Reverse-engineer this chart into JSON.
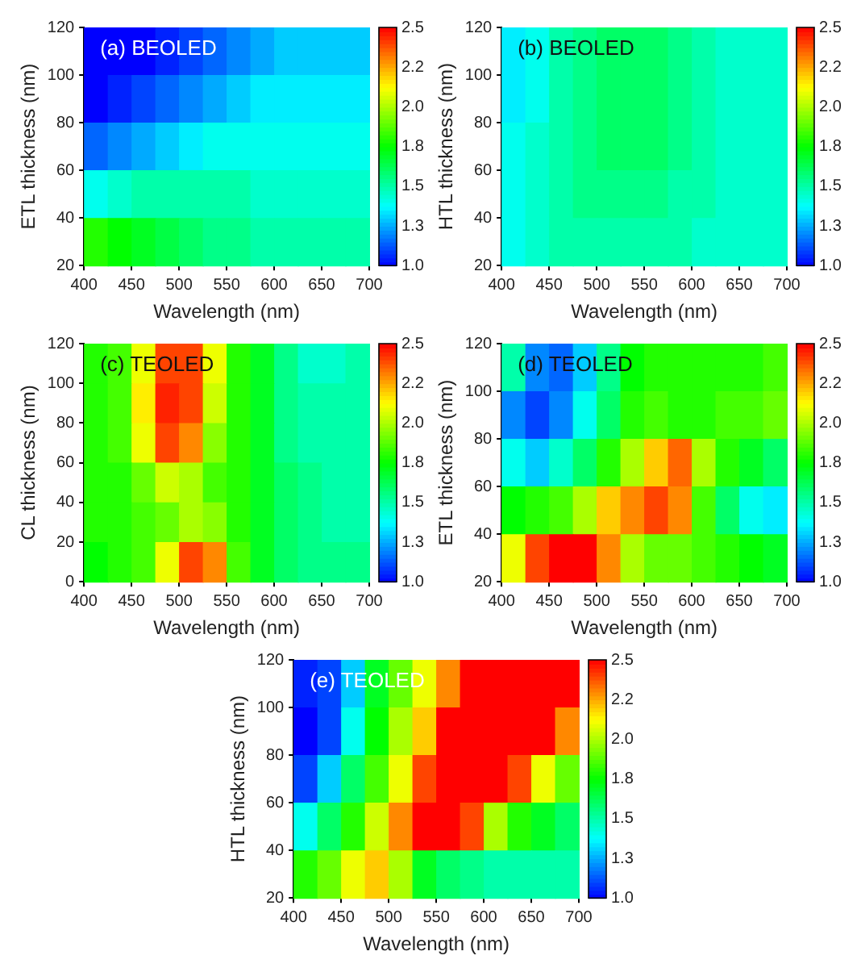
{
  "chart_data": [
    {
      "type": "heatmap",
      "title": "(a) BEOLED",
      "xlabel": "Wavelength (nm)",
      "ylabel": "ETL thickness (nm)",
      "xlim": [
        400,
        700
      ],
      "xticks": [
        400,
        450,
        500,
        550,
        600,
        650,
        700
      ],
      "ylim": [
        20,
        120
      ],
      "yticks": [
        20,
        40,
        60,
        80,
        100,
        120
      ],
      "clim": [
        1.0,
        2.5
      ],
      "cticks": [
        {
          "value": 1.0,
          "label": "1.0"
        },
        {
          "value": 1.25,
          "label": "1.3"
        },
        {
          "value": 1.5,
          "label": "1.5"
        },
        {
          "value": 1.75,
          "label": "1.8"
        },
        {
          "value": 2.0,
          "label": "2.0"
        },
        {
          "value": 2.25,
          "label": "2.2"
        },
        {
          "value": 2.5,
          "label": "2.5"
        }
      ],
      "cells": [
        [
          1.0,
          1.0,
          1.0,
          1.05,
          1.1,
          1.15,
          1.2,
          1.25,
          1.3,
          1.3,
          1.3,
          1.3
        ],
        [
          1.0,
          1.05,
          1.1,
          1.15,
          1.2,
          1.25,
          1.3,
          1.35,
          1.35,
          1.35,
          1.35,
          1.35
        ],
        [
          1.15,
          1.2,
          1.25,
          1.3,
          1.35,
          1.4,
          1.4,
          1.4,
          1.4,
          1.4,
          1.4,
          1.4
        ],
        [
          1.4,
          1.45,
          1.5,
          1.5,
          1.5,
          1.5,
          1.5,
          1.45,
          1.45,
          1.45,
          1.45,
          1.45
        ],
        [
          1.8,
          1.75,
          1.7,
          1.65,
          1.6,
          1.55,
          1.55,
          1.5,
          1.5,
          1.5,
          1.5,
          1.5
        ]
      ]
    },
    {
      "type": "heatmap",
      "title": "(b) BEOLED",
      "xlabel": "Wavelength (nm)",
      "ylabel": "HTL thickness (nm)",
      "xlim": [
        400,
        700
      ],
      "xticks": [
        400,
        450,
        500,
        550,
        600,
        650,
        700
      ],
      "ylim": [
        20,
        120
      ],
      "yticks": [
        20,
        40,
        60,
        80,
        100,
        120
      ],
      "clim": [
        1.0,
        2.5
      ],
      "cticks": [
        {
          "value": 1.0,
          "label": "1.0"
        },
        {
          "value": 1.25,
          "label": "1.3"
        },
        {
          "value": 1.5,
          "label": "1.5"
        },
        {
          "value": 1.75,
          "label": "1.8"
        },
        {
          "value": 2.0,
          "label": "2.0"
        },
        {
          "value": 2.25,
          "label": "2.2"
        },
        {
          "value": 2.5,
          "label": "2.5"
        }
      ],
      "cells": [
        [
          1.35,
          1.4,
          1.5,
          1.55,
          1.6,
          1.6,
          1.6,
          1.55,
          1.5,
          1.45,
          1.45,
          1.45
        ],
        [
          1.35,
          1.4,
          1.5,
          1.55,
          1.6,
          1.6,
          1.6,
          1.55,
          1.5,
          1.45,
          1.45,
          1.45
        ],
        [
          1.4,
          1.45,
          1.5,
          1.55,
          1.6,
          1.6,
          1.6,
          1.55,
          1.5,
          1.45,
          1.45,
          1.45
        ],
        [
          1.4,
          1.45,
          1.5,
          1.55,
          1.55,
          1.55,
          1.55,
          1.5,
          1.5,
          1.45,
          1.45,
          1.45
        ],
        [
          1.4,
          1.45,
          1.5,
          1.5,
          1.5,
          1.5,
          1.5,
          1.5,
          1.45,
          1.45,
          1.45,
          1.45
        ]
      ]
    },
    {
      "type": "heatmap",
      "title": "(c) TEOLED",
      "xlabel": "Wavelength (nm)",
      "ylabel": "CL thickness (nm)",
      "xlim": [
        400,
        700
      ],
      "xticks": [
        400,
        450,
        500,
        550,
        600,
        650,
        700
      ],
      "ylim": [
        0,
        120
      ],
      "yticks": [
        0,
        20,
        40,
        60,
        80,
        100,
        120
      ],
      "clim": [
        1.0,
        2.5
      ],
      "cticks": [
        {
          "value": 1.0,
          "label": "1.0"
        },
        {
          "value": 1.25,
          "label": "1.3"
        },
        {
          "value": 1.5,
          "label": "1.5"
        },
        {
          "value": 1.75,
          "label": "1.8"
        },
        {
          "value": 2.0,
          "label": "2.0"
        },
        {
          "value": 2.25,
          "label": "2.2"
        },
        {
          "value": 2.5,
          "label": "2.5"
        }
      ],
      "cells": [
        [
          1.8,
          1.85,
          2.1,
          2.4,
          2.4,
          2.1,
          1.8,
          1.7,
          1.55,
          1.45,
          1.45,
          1.5
        ],
        [
          1.8,
          1.85,
          2.15,
          2.45,
          2.4,
          2.05,
          1.8,
          1.7,
          1.55,
          1.5,
          1.5,
          1.5
        ],
        [
          1.8,
          1.85,
          2.1,
          2.4,
          2.3,
          1.95,
          1.8,
          1.7,
          1.55,
          1.5,
          1.5,
          1.5
        ],
        [
          1.8,
          1.8,
          1.9,
          2.05,
          2.0,
          1.85,
          1.8,
          1.7,
          1.6,
          1.55,
          1.5,
          1.5
        ],
        [
          1.8,
          1.8,
          1.85,
          1.9,
          2.0,
          1.95,
          1.8,
          1.7,
          1.6,
          1.55,
          1.5,
          1.5
        ],
        [
          1.75,
          1.8,
          1.85,
          2.1,
          2.4,
          2.3,
          1.85,
          1.7,
          1.6,
          1.55,
          1.55,
          1.55
        ]
      ]
    },
    {
      "type": "heatmap",
      "title": "(d) TEOLED",
      "xlabel": "Wavelength (nm)",
      "ylabel": "ETL thickness (nm)",
      "xlim": [
        400,
        700
      ],
      "xticks": [
        400,
        450,
        500,
        550,
        600,
        650,
        700
      ],
      "ylim": [
        20,
        120
      ],
      "yticks": [
        20,
        40,
        60,
        80,
        100,
        120
      ],
      "clim": [
        1.0,
        2.5
      ],
      "cticks": [
        {
          "value": 1.0,
          "label": "1.0"
        },
        {
          "value": 1.25,
          "label": "1.3"
        },
        {
          "value": 1.5,
          "label": "1.5"
        },
        {
          "value": 1.75,
          "label": "1.8"
        },
        {
          "value": 2.0,
          "label": "2.0"
        },
        {
          "value": 2.25,
          "label": "2.2"
        },
        {
          "value": 2.5,
          "label": "2.5"
        }
      ],
      "cells": [
        [
          1.5,
          1.2,
          1.15,
          1.3,
          1.55,
          1.75,
          1.8,
          1.8,
          1.8,
          1.8,
          1.8,
          1.85
        ],
        [
          1.2,
          1.1,
          1.2,
          1.4,
          1.6,
          1.8,
          1.85,
          1.8,
          1.8,
          1.85,
          1.85,
          1.9
        ],
        [
          1.4,
          1.3,
          1.45,
          1.6,
          1.8,
          2.0,
          2.2,
          2.35,
          2.0,
          1.8,
          1.7,
          1.6
        ],
        [
          1.75,
          1.8,
          1.85,
          2.0,
          2.2,
          2.3,
          2.4,
          2.3,
          1.85,
          1.6,
          1.4,
          1.35
        ],
        [
          2.1,
          2.4,
          2.5,
          2.5,
          2.3,
          2.0,
          1.9,
          1.9,
          1.85,
          1.8,
          1.75,
          1.7
        ]
      ]
    },
    {
      "type": "heatmap",
      "title": "(e) TEOLED",
      "xlabel": "Wavelength (nm)",
      "ylabel": "HTL thickness (nm)",
      "xlim": [
        400,
        700
      ],
      "xticks": [
        400,
        450,
        500,
        550,
        600,
        650,
        700
      ],
      "ylim": [
        20,
        120
      ],
      "yticks": [
        20,
        40,
        60,
        80,
        100,
        120
      ],
      "clim": [
        1.0,
        2.5
      ],
      "cticks": [
        {
          "value": 1.0,
          "label": "1.0"
        },
        {
          "value": 1.25,
          "label": "1.3"
        },
        {
          "value": 1.5,
          "label": "1.5"
        },
        {
          "value": 1.75,
          "label": "1.8"
        },
        {
          "value": 2.0,
          "label": "2.0"
        },
        {
          "value": 2.25,
          "label": "2.2"
        },
        {
          "value": 2.5,
          "label": "2.5"
        }
      ],
      "cells": [
        [
          1.05,
          1.1,
          1.3,
          1.7,
          1.9,
          2.1,
          2.3,
          2.5,
          2.5,
          2.5,
          2.5,
          2.5
        ],
        [
          1.0,
          1.1,
          1.4,
          1.75,
          2.0,
          2.2,
          2.5,
          2.5,
          2.5,
          2.5,
          2.5,
          2.3
        ],
        [
          1.1,
          1.3,
          1.6,
          1.85,
          2.1,
          2.4,
          2.5,
          2.5,
          2.5,
          2.4,
          2.1,
          1.9
        ],
        [
          1.4,
          1.6,
          1.8,
          2.05,
          2.3,
          2.5,
          2.5,
          2.4,
          2.0,
          1.8,
          1.7,
          1.6
        ],
        [
          1.8,
          1.9,
          2.1,
          2.2,
          2.0,
          1.7,
          1.6,
          1.55,
          1.5,
          1.5,
          1.5,
          1.5
        ]
      ]
    }
  ]
}
